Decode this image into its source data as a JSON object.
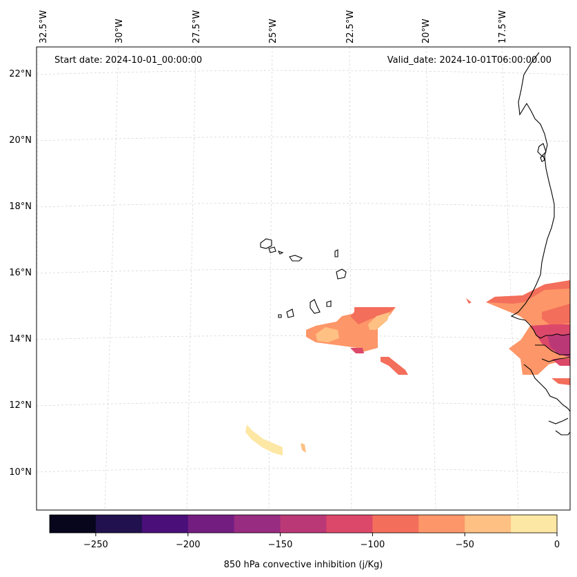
{
  "header": {
    "start_date": "Start date: 2024-10-01_00:00:00",
    "valid_date": "Valid_date: 2024-10-01T06:00:00.00"
  },
  "longitude_labels": [
    "32.5°W",
    "30°W",
    "27.5°W",
    "25°W",
    "22.5°W",
    "20°W",
    "17.5°W"
  ],
  "latitude_labels": [
    "22°N",
    "20°N",
    "18°N",
    "16°N",
    "14°N",
    "12°N",
    "10°N"
  ],
  "colorbar": {
    "label": "850 hPa convective inhibition (j/Kg)",
    "ticks": [
      "−250",
      "−200",
      "−150",
      "−100",
      "−50",
      "0"
    ],
    "levels": [
      -275,
      -250,
      -225,
      -200,
      -175,
      -150,
      -125,
      -100,
      -75,
      -50,
      -25,
      0
    ],
    "colors": [
      "#07061c",
      "#21114e",
      "#4a0f79",
      "#731d81",
      "#982c80",
      "#bb3877",
      "#dc4869",
      "#f36e5b",
      "#fd9668",
      "#fec083",
      "#fde7a4"
    ]
  },
  "map": {
    "projection": "conic",
    "extent_lon": [
      -33,
      -15.8
    ],
    "extent_lat": [
      8.9,
      22.8
    ],
    "gridlines": true,
    "coastline_color": "#000000",
    "features": [
      {
        "name": "Cape Verde cluster",
        "cin_range": [
          -125,
          -25
        ]
      },
      {
        "name": "Senegal / Gambia coast",
        "cin_range": [
          -150,
          -25
        ]
      },
      {
        "name": "Southwest patch",
        "cin_range": [
          -25,
          0
        ]
      }
    ]
  }
}
